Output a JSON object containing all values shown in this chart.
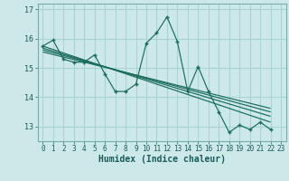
{
  "xlabel": "Humidex (Indice chaleur)",
  "bg_color": "#cce8e8",
  "grid_color": "#aad4d4",
  "line_color": "#1a6b5a",
  "xlim": [
    -0.5,
    23.5
  ],
  "ylim": [
    12.5,
    17.2
  ],
  "xtick_labels": [
    "0",
    "1",
    "2",
    "3",
    "4",
    "5",
    "6",
    "7",
    "8",
    "9",
    "10",
    "11",
    "12",
    "13",
    "14",
    "15",
    "16",
    "17",
    "18",
    "19",
    "20",
    "21",
    "22",
    "23"
  ],
  "ytick_values": [
    13,
    14,
    15,
    16,
    17
  ],
  "main_series_x": [
    0,
    1,
    2,
    3,
    4,
    5,
    6,
    7,
    8,
    9,
    10,
    11,
    12,
    13,
    14,
    15,
    16,
    17,
    18,
    19,
    20,
    21,
    22
  ],
  "main_series_y": [
    15.75,
    15.95,
    15.3,
    15.2,
    15.2,
    15.45,
    14.8,
    14.2,
    14.2,
    14.45,
    15.85,
    16.2,
    16.75,
    15.9,
    14.2,
    15.05,
    14.2,
    13.5,
    12.8,
    13.05,
    12.9,
    13.15,
    12.9
  ],
  "trend_lines": [
    {
      "x": [
        0,
        22
      ],
      "y": [
        15.75,
        13.15
      ]
    },
    {
      "x": [
        0,
        22
      ],
      "y": [
        15.68,
        13.35
      ]
    },
    {
      "x": [
        0,
        22
      ],
      "y": [
        15.62,
        13.5
      ]
    },
    {
      "x": [
        0,
        22
      ],
      "y": [
        15.55,
        13.62
      ]
    }
  ],
  "xlabel_fontsize": 7,
  "tick_fontsize": 5.5
}
